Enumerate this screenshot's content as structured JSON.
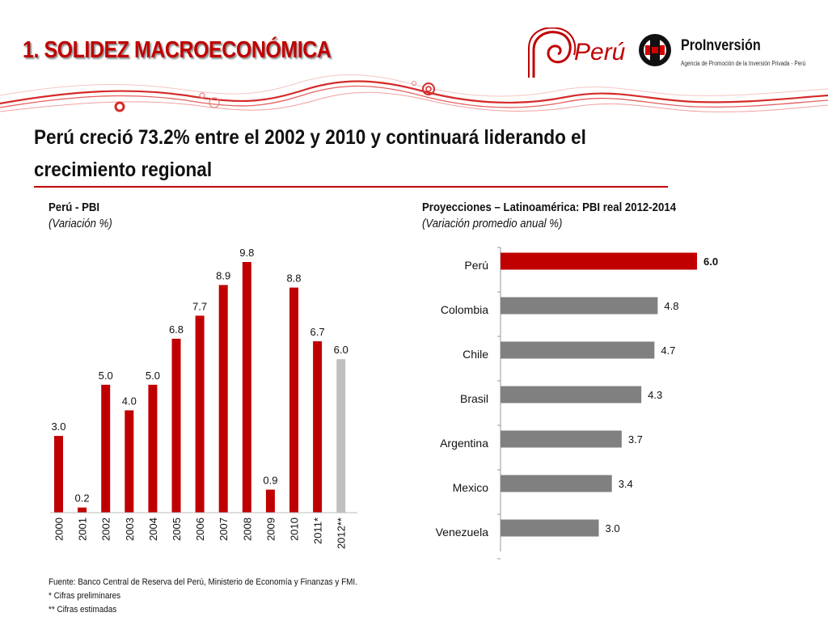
{
  "header": {
    "title": "1. SOLIDEZ MACROECONÓMICA",
    "brand_peru": "Perú",
    "brand_proinversion": "ProInversión",
    "brand_proinversion_sub": "Agencia de Promoción de la Inversión Privada - Perú"
  },
  "headline": {
    "line1": "Perú creció 73.2% entre el 2002 y 2010 y continuará liderando el",
    "line2": "crecimiento regional"
  },
  "colors": {
    "accent": "#c00000",
    "bar_primary": "#c00000",
    "bar_projection": "#c0c0c0",
    "bar_other": "#808080"
  },
  "chart_data": [
    {
      "type": "bar",
      "title": "Perú - PBI",
      "subtitle": "(Variación %)",
      "categories": [
        "2000",
        "2001",
        "2002",
        "2003",
        "2004",
        "2005",
        "2006",
        "2007",
        "2008",
        "2009",
        "2010",
        "2011*",
        "2012**"
      ],
      "values": [
        3.0,
        0.2,
        5.0,
        4.0,
        5.0,
        6.8,
        7.7,
        8.9,
        9.8,
        0.9,
        8.8,
        6.7,
        6.0
      ],
      "value_labels": [
        "3.0",
        "0.2",
        "5.0",
        "4.0",
        "5.0",
        "6.8",
        "7.7",
        "8.9",
        "9.8",
        "0.9",
        "8.8",
        "6.7",
        "6.0"
      ],
      "highlight": [
        "primary",
        "primary",
        "primary",
        "primary",
        "primary",
        "primary",
        "primary",
        "primary",
        "primary",
        "primary",
        "primary",
        "primary",
        "projection"
      ],
      "ylim": [
        0,
        10
      ],
      "grid": false,
      "legend": "none"
    },
    {
      "type": "bar",
      "orientation": "horizontal",
      "title": "Proyecciones – Latinoamérica: PBI real 2012-2014",
      "subtitle": "(Variación promedio anual %)",
      "categories": [
        "Perú",
        "Colombia",
        "Chile",
        "Brasil",
        "Argentina",
        "Mexico",
        "Venezuela"
      ],
      "values": [
        6.0,
        4.8,
        4.7,
        4.3,
        3.7,
        3.4,
        3.0
      ],
      "value_labels": [
        "6.0",
        "4.8",
        "4.7",
        "4.3",
        "3.7",
        "3.4",
        "3.0"
      ],
      "highlight": [
        "primary",
        "other",
        "other",
        "other",
        "other",
        "other",
        "other"
      ],
      "xlim": [
        0,
        6.2
      ],
      "grid": false,
      "legend": "none"
    }
  ],
  "footnotes": {
    "source": "Fuente: Banco Central de Reserva del Perú, Ministerio de Economía y Finanzas y FMI.",
    "note1": " * Cifras preliminares",
    "note2": "** Cifras estimadas"
  }
}
